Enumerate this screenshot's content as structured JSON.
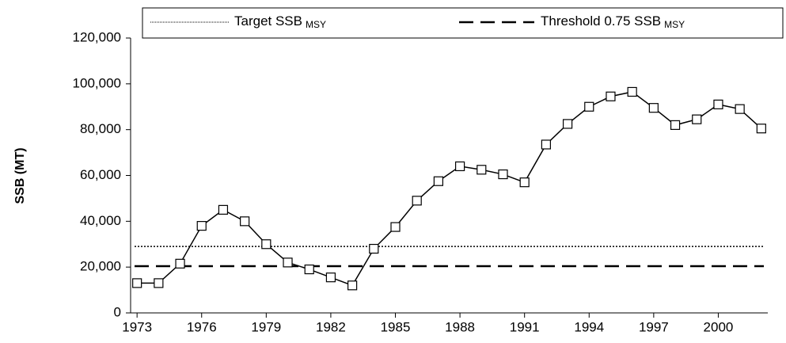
{
  "chart_data": {
    "type": "line",
    "y_label": "SSB (MT)",
    "x": [
      1973,
      1974,
      1975,
      1976,
      1977,
      1978,
      1979,
      1980,
      1981,
      1982,
      1983,
      1984,
      1985,
      1986,
      1987,
      1988,
      1989,
      1990,
      1991,
      1992,
      1993,
      1994,
      1995,
      1996,
      1997,
      1998,
      1999,
      2000,
      2001,
      2002
    ],
    "series": [
      {
        "color": "#000000",
        "values": [
          13000,
          13000,
          21500,
          38000,
          45000,
          40000,
          30000,
          22000,
          19000,
          15500,
          12000,
          28000,
          37500,
          49000,
          57500,
          64000,
          62500,
          60500,
          57000,
          73500,
          82500,
          90000,
          94500,
          96500,
          89500,
          82000,
          84500,
          91000,
          89000,
          80500
        ]
      }
    ],
    "reference_lines": [
      {
        "name": "Target SSB",
        "name_subscript": "MSY",
        "value": 29000,
        "style": "dotted",
        "color": "#000000"
      },
      {
        "name": "Threshold 0.75 SSB",
        "name_subscript": "MSY",
        "value": 20400,
        "style": "dashed",
        "color": "#000000"
      }
    ],
    "xlim": [
      1972.7,
      2002.3
    ],
    "xticks": [
      1973,
      1976,
      1979,
      1982,
      1985,
      1988,
      1991,
      1994,
      1997,
      2000
    ],
    "ylim": [
      0,
      120000
    ],
    "yticks": [
      0,
      {
        "value": 20000,
        "label": "20,000"
      },
      {
        "value": 40000,
        "label": "40,000"
      },
      {
        "value": 60000,
        "label": "60,000"
      },
      {
        "value": 80000,
        "label": "80,000"
      },
      {
        "value": 100000,
        "label": "100,000"
      },
      {
        "value": 120000,
        "label": "120,000"
      }
    ],
    "legend": "top"
  }
}
